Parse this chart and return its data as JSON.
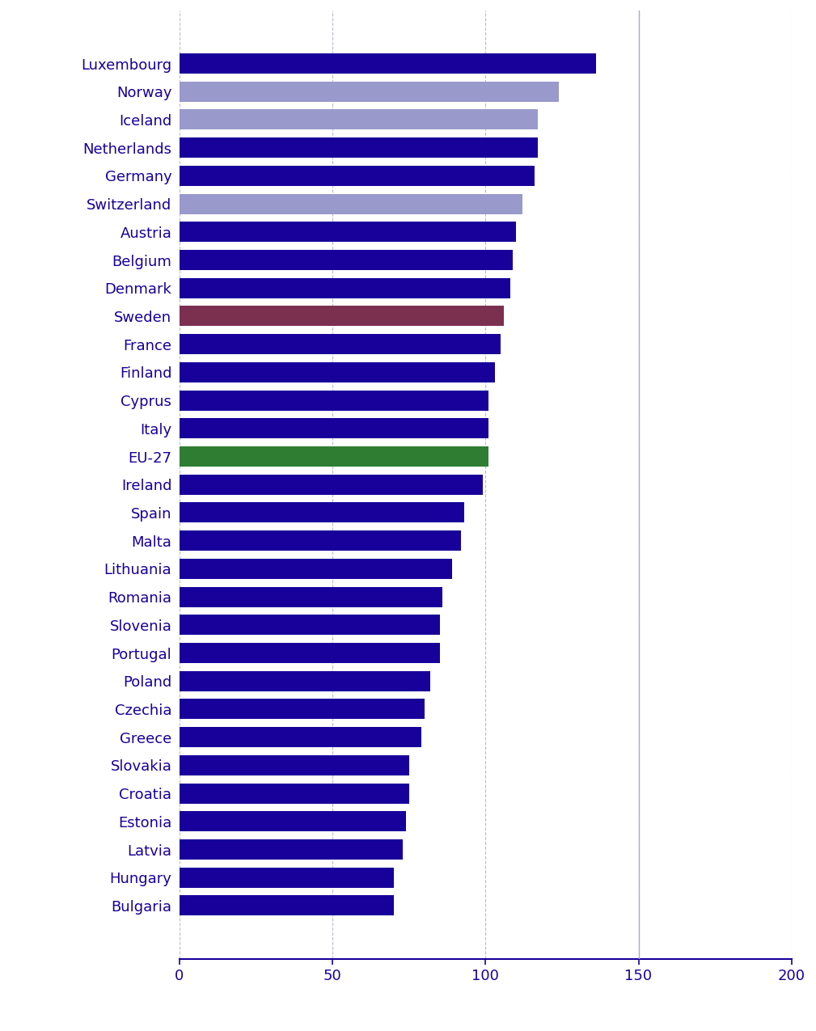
{
  "countries": [
    "Luxembourg",
    "Norway",
    "Iceland",
    "Netherlands",
    "Germany",
    "Switzerland",
    "Austria",
    "Belgium",
    "Denmark",
    "Sweden",
    "France",
    "Finland",
    "Cyprus",
    "Italy",
    "EU-27",
    "Ireland",
    "Spain",
    "Malta",
    "Lithuania",
    "Romania",
    "Slovenia",
    "Portugal",
    "Poland",
    "Czechia",
    "Greece",
    "Slovakia",
    "Croatia",
    "Estonia",
    "Latvia",
    "Hungary",
    "Bulgaria"
  ],
  "values": [
    136,
    124,
    117,
    117,
    116,
    112,
    110,
    109,
    108,
    106,
    105,
    103,
    101,
    101,
    101,
    99,
    93,
    92,
    89,
    86,
    85,
    85,
    82,
    80,
    79,
    75,
    75,
    74,
    73,
    70,
    70
  ],
  "colors": [
    "#18009a",
    "#9999cc",
    "#9999cc",
    "#18009a",
    "#18009a",
    "#9999cc",
    "#18009a",
    "#18009a",
    "#18009a",
    "#7b3050",
    "#18009a",
    "#18009a",
    "#18009a",
    "#18009a",
    "#2e7d32",
    "#18009a",
    "#18009a",
    "#18009a",
    "#18009a",
    "#18009a",
    "#18009a",
    "#18009a",
    "#18009a",
    "#18009a",
    "#18009a",
    "#18009a",
    "#18009a",
    "#18009a",
    "#18009a",
    "#18009a",
    "#18009a"
  ],
  "xlim": [
    0,
    200
  ],
  "xticks": [
    0,
    50,
    100,
    150,
    200
  ],
  "grid_color": "#bbbbcc",
  "text_color": "#18009a",
  "bg_color": "#ffffff",
  "bar_height": 0.72,
  "vline_x": 150,
  "vline_color": "#aaaacc",
  "label_fontsize": 13,
  "tick_fontsize": 13
}
